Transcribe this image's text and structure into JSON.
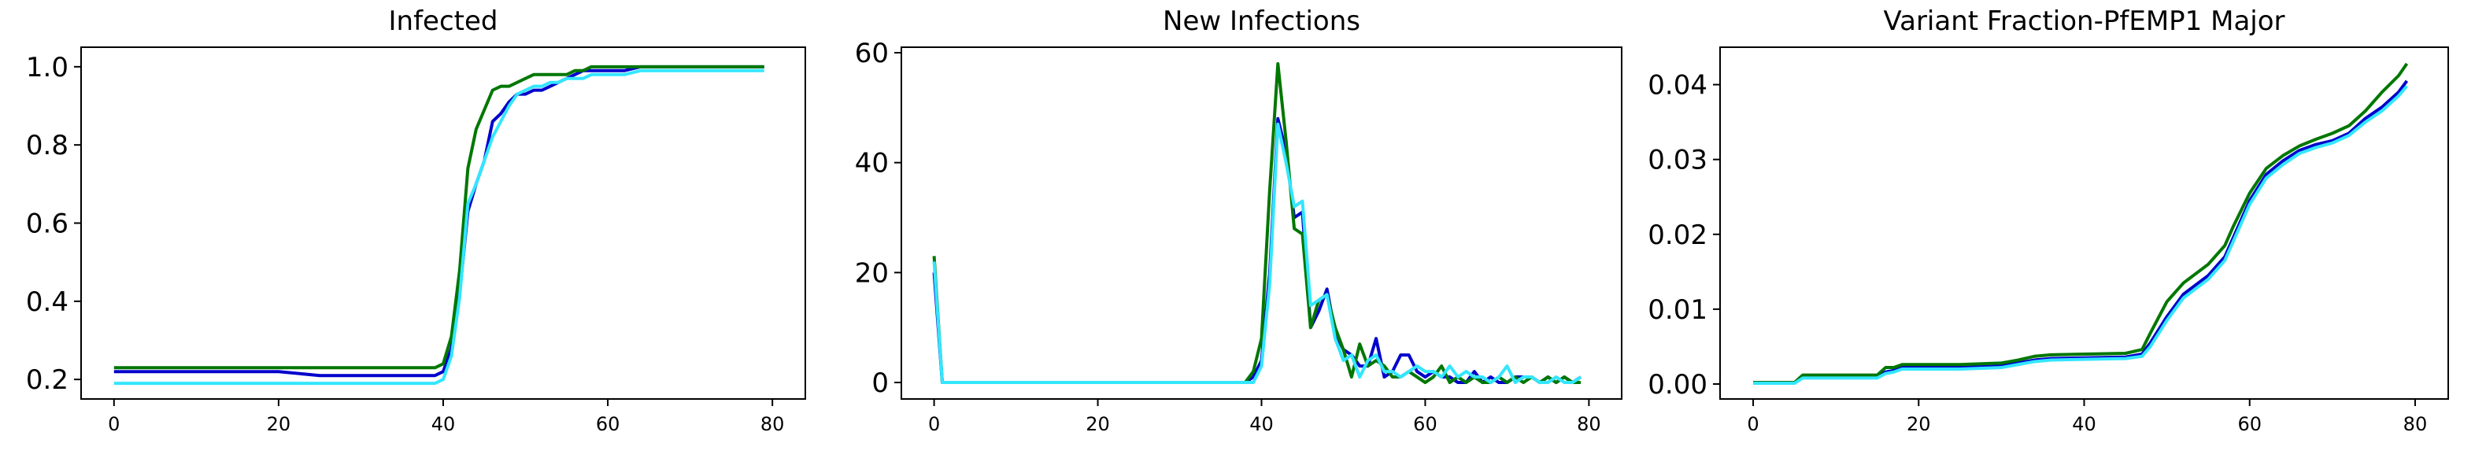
{
  "chart_data": [
    {
      "type": "line",
      "title": "Infected",
      "xlim": [
        -4,
        84
      ],
      "ylim": [
        0.15,
        1.05
      ],
      "xticks": [
        0,
        20,
        40,
        60,
        80
      ],
      "xtick_labels": [
        "0",
        "20",
        "40",
        "60",
        "80"
      ],
      "yticks": [
        0.2,
        0.4,
        0.6,
        0.8,
        1.0
      ],
      "ytick_labels": [
        "0.2",
        "0.4",
        "0.6",
        "0.8",
        "1.0"
      ],
      "grid": false,
      "x": [
        0,
        5,
        10,
        15,
        20,
        25,
        30,
        35,
        38,
        39,
        40,
        41,
        42,
        43,
        44,
        45,
        46,
        47,
        48,
        49,
        50,
        51,
        52,
        53,
        54,
        55,
        56,
        57,
        58,
        59,
        60,
        62,
        64,
        66,
        68,
        70,
        72,
        74,
        76,
        78,
        79
      ],
      "series": [
        {
          "color": "#0000cc",
          "values": [
            0.22,
            0.22,
            0.22,
            0.22,
            0.22,
            0.21,
            0.21,
            0.21,
            0.21,
            0.21,
            0.22,
            0.28,
            0.42,
            0.63,
            0.7,
            0.76,
            0.86,
            0.88,
            0.91,
            0.93,
            0.93,
            0.94,
            0.94,
            0.95,
            0.96,
            0.97,
            0.98,
            0.99,
            0.99,
            0.99,
            0.99,
            0.99,
            1.0,
            1.0,
            1.0,
            1.0,
            1.0,
            1.0,
            1.0,
            1.0,
            1.0
          ]
        },
        {
          "color": "#007700",
          "values": [
            0.23,
            0.23,
            0.23,
            0.23,
            0.23,
            0.23,
            0.23,
            0.23,
            0.23,
            0.23,
            0.24,
            0.31,
            0.48,
            0.74,
            0.84,
            0.89,
            0.94,
            0.95,
            0.95,
            0.96,
            0.97,
            0.98,
            0.98,
            0.98,
            0.98,
            0.98,
            0.99,
            0.99,
            1.0,
            1.0,
            1.0,
            1.0,
            1.0,
            1.0,
            1.0,
            1.0,
            1.0,
            1.0,
            1.0,
            1.0,
            1.0
          ]
        },
        {
          "color": "#33e6ff",
          "values": [
            0.19,
            0.19,
            0.19,
            0.19,
            0.19,
            0.19,
            0.19,
            0.19,
            0.19,
            0.19,
            0.2,
            0.26,
            0.41,
            0.65,
            0.7,
            0.76,
            0.82,
            0.86,
            0.9,
            0.93,
            0.94,
            0.95,
            0.95,
            0.96,
            0.96,
            0.97,
            0.97,
            0.97,
            0.98,
            0.98,
            0.98,
            0.98,
            0.99,
            0.99,
            0.99,
            0.99,
            0.99,
            0.99,
            0.99,
            0.99,
            0.99
          ]
        }
      ]
    },
    {
      "type": "line",
      "title": "New Infections",
      "xlim": [
        -4,
        84
      ],
      "ylim": [
        -3,
        61
      ],
      "xticks": [
        0,
        20,
        40,
        60,
        80
      ],
      "xtick_labels": [
        "0",
        "20",
        "40",
        "60",
        "80"
      ],
      "yticks": [
        0,
        20,
        40,
        60
      ],
      "ytick_labels": [
        "0",
        "20",
        "40",
        "60"
      ],
      "grid": false,
      "x": [
        0,
        1,
        2,
        5,
        10,
        20,
        30,
        37,
        38,
        39,
        40,
        41,
        42,
        43,
        44,
        45,
        46,
        47,
        48,
        49,
        50,
        51,
        52,
        53,
        54,
        55,
        56,
        57,
        58,
        59,
        60,
        61,
        62,
        63,
        64,
        65,
        66,
        67,
        68,
        69,
        70,
        71,
        72,
        73,
        74,
        75,
        76,
        77,
        78,
        79
      ],
      "series": [
        {
          "color": "#0000cc",
          "values": [
            20,
            0,
            0,
            0,
            0,
            0,
            0,
            0,
            0,
            1,
            4,
            20,
            48,
            42,
            30,
            31,
            10,
            13,
            17,
            9,
            6,
            5,
            3,
            3,
            8,
            1,
            2,
            5,
            5,
            2,
            1,
            2,
            1,
            1,
            0,
            0,
            2,
            0,
            1,
            0,
            0,
            1,
            1,
            1,
            0,
            1,
            0,
            1,
            0,
            1
          ]
        },
        {
          "color": "#007700",
          "values": [
            23,
            0,
            0,
            0,
            0,
            0,
            0,
            0,
            0,
            2,
            8,
            35,
            58,
            44,
            28,
            27,
            10,
            15,
            16,
            10,
            6,
            1,
            7,
            3,
            4,
            3,
            1,
            1,
            2,
            1,
            0,
            1,
            3,
            0,
            1,
            0,
            1,
            0,
            0,
            1,
            0,
            1,
            0,
            1,
            0,
            1,
            0,
            1,
            0,
            0
          ]
        },
        {
          "color": "#33e6ff",
          "values": [
            22,
            0,
            0,
            0,
            0,
            0,
            0,
            0,
            0,
            0,
            3,
            18,
            47,
            40,
            32,
            33,
            14,
            15,
            16,
            8,
            4,
            5,
            1,
            4,
            5,
            2,
            2,
            1,
            2,
            3,
            2,
            2,
            1,
            3,
            1,
            2,
            1,
            1,
            0,
            1,
            3,
            0,
            1,
            1,
            0,
            0,
            1,
            0,
            0,
            1
          ]
        }
      ]
    },
    {
      "type": "line",
      "title": "Variant Fraction-PfEMP1 Major",
      "xlim": [
        -4,
        84
      ],
      "ylim": [
        -0.002,
        0.045
      ],
      "xticks": [
        0,
        20,
        40,
        60,
        80
      ],
      "xtick_labels": [
        "0",
        "20",
        "40",
        "60",
        "80"
      ],
      "yticks": [
        0.0,
        0.01,
        0.02,
        0.03,
        0.04
      ],
      "ytick_labels": [
        "0.00",
        "0.01",
        "0.02",
        "0.03",
        "0.04"
      ],
      "grid": false,
      "x": [
        0,
        3,
        5,
        6,
        10,
        15,
        16,
        17,
        18,
        20,
        25,
        30,
        32,
        34,
        36,
        40,
        45,
        47,
        48,
        50,
        52,
        55,
        57,
        58,
        60,
        62,
        64,
        66,
        68,
        70,
        72,
        74,
        76,
        78,
        79
      ],
      "series": [
        {
          "color": "#0000cc",
          "values": [
            0.0002,
            0.0002,
            0.0002,
            0.001,
            0.001,
            0.001,
            0.0016,
            0.0018,
            0.0022,
            0.0022,
            0.0022,
            0.0024,
            0.0028,
            0.0032,
            0.0034,
            0.0035,
            0.0036,
            0.004,
            0.0055,
            0.009,
            0.012,
            0.0145,
            0.017,
            0.0195,
            0.0245,
            0.028,
            0.0298,
            0.0312,
            0.032,
            0.0325,
            0.0335,
            0.0355,
            0.037,
            0.039,
            0.0405
          ]
        },
        {
          "color": "#007700",
          "values": [
            0.0002,
            0.0002,
            0.0002,
            0.0012,
            0.0012,
            0.0012,
            0.0022,
            0.0022,
            0.0026,
            0.0026,
            0.0026,
            0.0028,
            0.0032,
            0.0037,
            0.0039,
            0.004,
            0.0041,
            0.0046,
            0.0068,
            0.011,
            0.0135,
            0.016,
            0.0185,
            0.021,
            0.0255,
            0.0288,
            0.0305,
            0.0318,
            0.0327,
            0.0335,
            0.0345,
            0.0365,
            0.039,
            0.0412,
            0.0428
          ]
        },
        {
          "color": "#33e6ff",
          "values": [
            0.0001,
            0.0001,
            0.0001,
            0.0008,
            0.0008,
            0.0008,
            0.0014,
            0.0016,
            0.002,
            0.002,
            0.002,
            0.0022,
            0.0026,
            0.003,
            0.0032,
            0.0033,
            0.0034,
            0.0037,
            0.005,
            0.0085,
            0.0115,
            0.014,
            0.0165,
            0.019,
            0.024,
            0.0275,
            0.0293,
            0.0308,
            0.0316,
            0.0322,
            0.0332,
            0.035,
            0.0365,
            0.0385,
            0.0398
          ]
        }
      ]
    }
  ]
}
